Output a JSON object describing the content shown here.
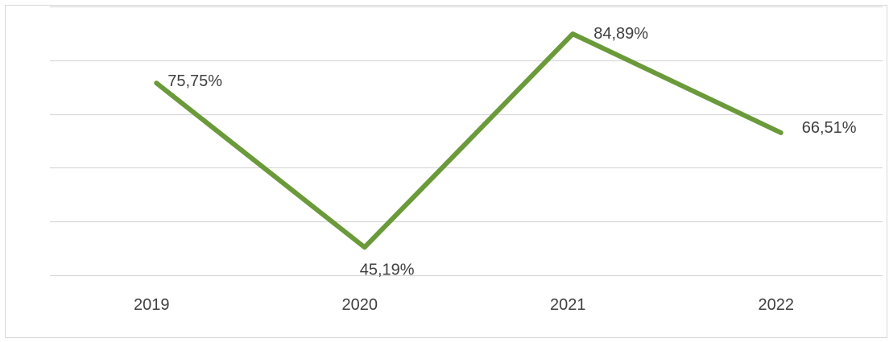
{
  "chart_data": {
    "type": "line",
    "categories": [
      "2019",
      "2020",
      "2021",
      "2022"
    ],
    "series": [
      {
        "values": [
          75.75,
          45.19,
          84.89,
          66.51
        ],
        "labels": [
          "75,75%",
          "45,19%",
          "84,89%",
          "66,51%"
        ],
        "color": "#6a9a3a"
      }
    ],
    "title": "",
    "xlabel": "",
    "ylabel": "",
    "ylim": [
      40,
      90
    ],
    "grid": true,
    "legend": "none"
  }
}
